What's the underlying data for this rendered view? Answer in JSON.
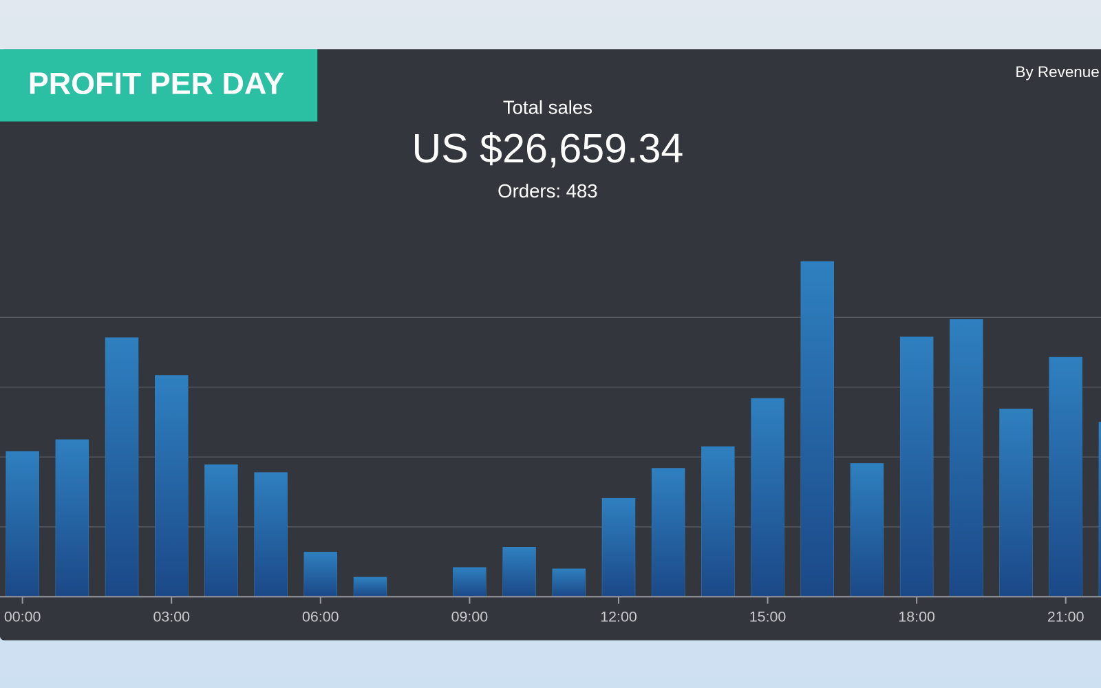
{
  "header": {
    "title": "PROFIT PER DAY",
    "toggle": "By Revenue"
  },
  "summary": {
    "label": "Total sales",
    "total": "US $26,659.34",
    "orders": "Orders: 483"
  },
  "chart_data": {
    "type": "bar",
    "categories": [
      "00:00",
      null,
      null,
      "03:00",
      null,
      null,
      "06:00",
      null,
      null,
      "09:00",
      null,
      null,
      "12:00",
      null,
      null,
      "15:00",
      null,
      null,
      "18:00",
      null,
      null,
      "21:00",
      null
    ],
    "values": [
      2.08,
      2.25,
      3.71,
      3.17,
      1.89,
      1.78,
      0.64,
      0.28,
      0,
      0.42,
      0.71,
      0.4,
      1.41,
      1.84,
      2.15,
      2.84,
      4.8,
      1.91,
      3.72,
      3.97,
      2.69,
      3.43,
      2.5
    ],
    "color": "#2f80c0",
    "ylim": [
      0,
      5
    ],
    "yticks": [
      1,
      2,
      3,
      4
    ],
    "grid": true
  }
}
